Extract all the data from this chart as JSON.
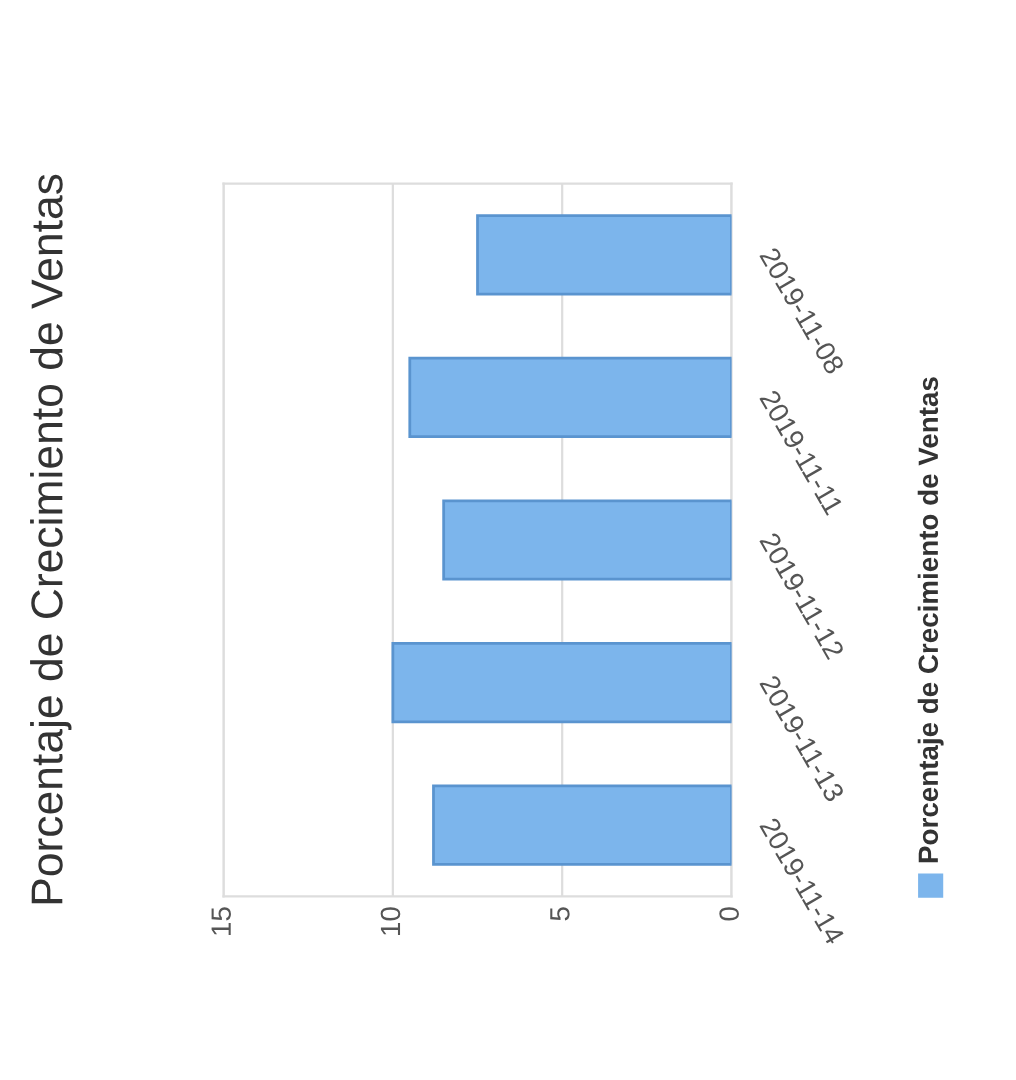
{
  "chart_data": {
    "type": "bar",
    "title": "Porcentaje de Crecimiento de Ventas",
    "orientation": "horizontal",
    "categories": [
      "2019-11-08",
      "2019-11-11",
      "2019-11-12",
      "2019-11-13",
      "2019-11-14"
    ],
    "series": [
      {
        "name": "Porcentaje de Crecimiento de Ventas",
        "color": "#7cb5ec",
        "values": [
          7.5,
          9.5,
          8.5,
          10,
          8.8
        ]
      }
    ],
    "xlim": [
      15,
      0
    ],
    "xticks": [
      0,
      5,
      10,
      15
    ],
    "grid": "x",
    "legend": "right"
  }
}
